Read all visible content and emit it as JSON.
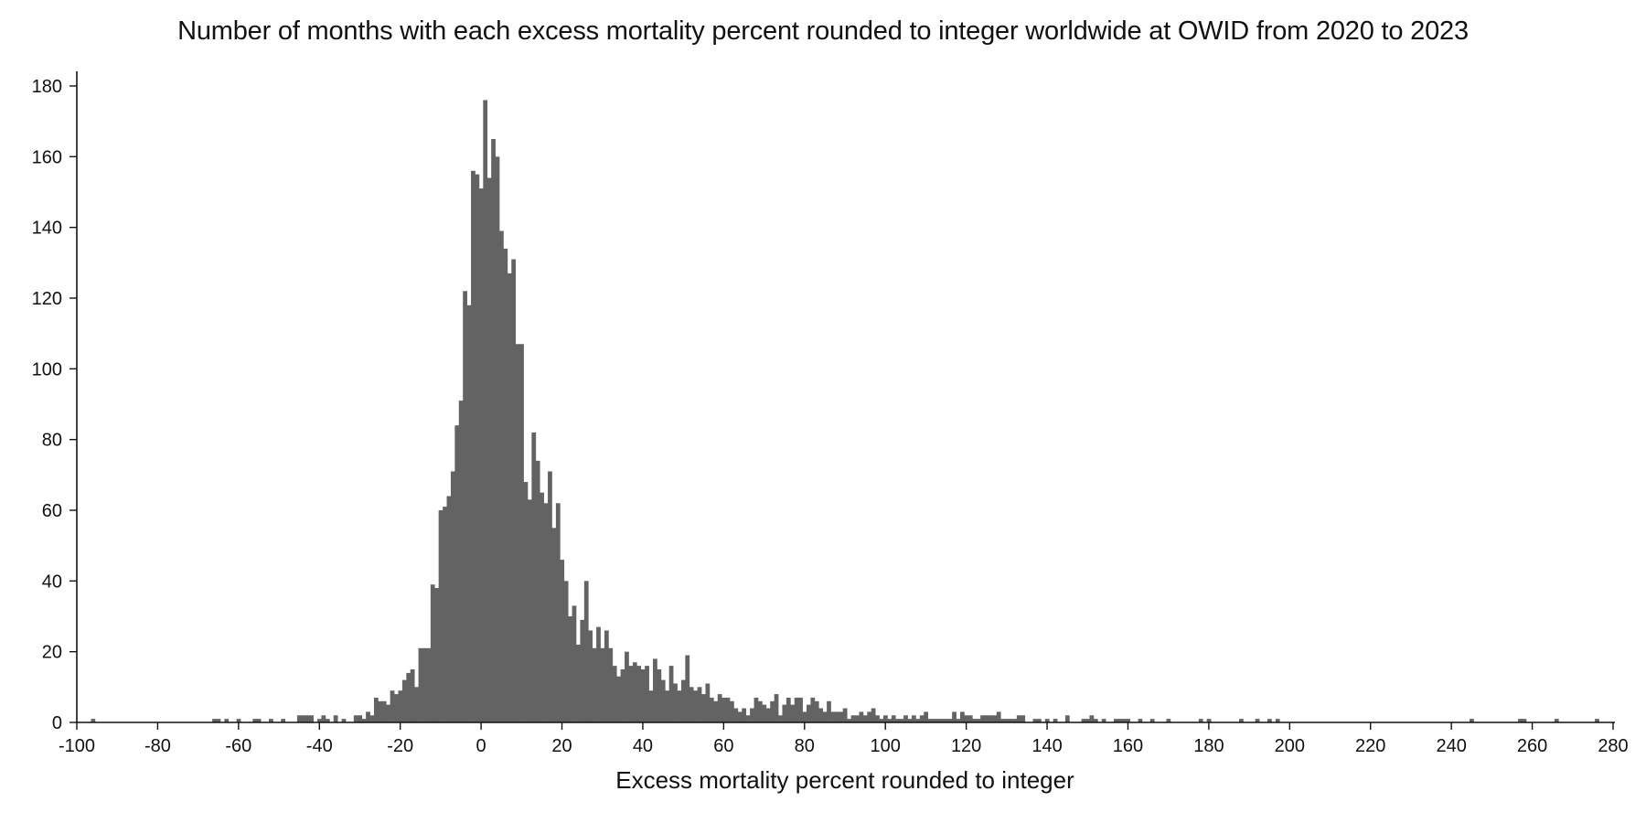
{
  "chart_data": {
    "type": "bar",
    "title": "Number of months with each excess mortality percent rounded to integer worldwide at OWID from 2020 to 2023",
    "xlabel": "Excess mortality percent rounded to integer",
    "ylabel": "",
    "xlim": [
      -100,
      280
    ],
    "ylim": [
      0,
      180
    ],
    "x_ticks": [
      -100,
      -80,
      -60,
      -40,
      -20,
      0,
      20,
      40,
      60,
      80,
      100,
      120,
      140,
      160,
      180,
      200,
      220,
      240,
      260,
      280
    ],
    "y_ticks": [
      0,
      20,
      40,
      60,
      80,
      100,
      120,
      140,
      160,
      180
    ],
    "grid": false,
    "legend": "none",
    "bar_color": "#636363",
    "series": [
      {
        "points": [
          [
            -96,
            1
          ],
          [
            -66,
            1
          ],
          [
            -65,
            1
          ],
          [
            -63,
            1
          ],
          [
            -60,
            1
          ],
          [
            -56,
            1
          ],
          [
            -55,
            1
          ],
          [
            -52,
            1
          ],
          [
            -49,
            1
          ],
          [
            -45,
            2
          ],
          [
            -44,
            2
          ],
          [
            -43,
            2
          ],
          [
            -42,
            2
          ],
          [
            -40,
            1
          ],
          [
            -39,
            2
          ],
          [
            -38,
            1
          ],
          [
            -36,
            2
          ],
          [
            -34,
            1
          ],
          [
            -31,
            2
          ],
          [
            -30,
            2
          ],
          [
            -29,
            1
          ],
          [
            -28,
            3
          ],
          [
            -27,
            2
          ],
          [
            -26,
            7
          ],
          [
            -25,
            6
          ],
          [
            -24,
            6
          ],
          [
            -23,
            5
          ],
          [
            -22,
            9
          ],
          [
            -21,
            8
          ],
          [
            -20,
            9
          ],
          [
            -19,
            12
          ],
          [
            -18,
            14
          ],
          [
            -17,
            15
          ],
          [
            -16,
            10
          ],
          [
            -15,
            21
          ],
          [
            -14,
            21
          ],
          [
            -13,
            21
          ],
          [
            -12,
            39
          ],
          [
            -11,
            38
          ],
          [
            -10,
            60
          ],
          [
            -9,
            61
          ],
          [
            -8,
            64
          ],
          [
            -7,
            71
          ],
          [
            -6,
            84
          ],
          [
            -5,
            91
          ],
          [
            -4,
            122
          ],
          [
            -3,
            118
          ],
          [
            -2,
            156
          ],
          [
            -1,
            155
          ],
          [
            0,
            151
          ],
          [
            1,
            176
          ],
          [
            2,
            154
          ],
          [
            3,
            165
          ],
          [
            4,
            160
          ],
          [
            5,
            139
          ],
          [
            6,
            134
          ],
          [
            7,
            127
          ],
          [
            8,
            131
          ],
          [
            9,
            107
          ],
          [
            10,
            107
          ],
          [
            11,
            68
          ],
          [
            12,
            63
          ],
          [
            13,
            82
          ],
          [
            14,
            74
          ],
          [
            15,
            65
          ],
          [
            16,
            62
          ],
          [
            17,
            71
          ],
          [
            18,
            55
          ],
          [
            19,
            62
          ],
          [
            20,
            46
          ],
          [
            21,
            40
          ],
          [
            22,
            30
          ],
          [
            23,
            33
          ],
          [
            24,
            22
          ],
          [
            25,
            29
          ],
          [
            26,
            40
          ],
          [
            27,
            26
          ],
          [
            28,
            21
          ],
          [
            29,
            27
          ],
          [
            30,
            21
          ],
          [
            31,
            26
          ],
          [
            32,
            21
          ],
          [
            33,
            16
          ],
          [
            34,
            13
          ],
          [
            35,
            15
          ],
          [
            36,
            20
          ],
          [
            37,
            16
          ],
          [
            38,
            17
          ],
          [
            39,
            16
          ],
          [
            40,
            15
          ],
          [
            41,
            16
          ],
          [
            42,
            9
          ],
          [
            43,
            18
          ],
          [
            44,
            15
          ],
          [
            45,
            12
          ],
          [
            46,
            9
          ],
          [
            47,
            16
          ],
          [
            48,
            11
          ],
          [
            49,
            9
          ],
          [
            50,
            12
          ],
          [
            51,
            19
          ],
          [
            52,
            10
          ],
          [
            53,
            9
          ],
          [
            54,
            10
          ],
          [
            55,
            8
          ],
          [
            56,
            11
          ],
          [
            57,
            7
          ],
          [
            58,
            6
          ],
          [
            59,
            8
          ],
          [
            60,
            7
          ],
          [
            61,
            7
          ],
          [
            62,
            6
          ],
          [
            63,
            4
          ],
          [
            64,
            3
          ],
          [
            65,
            4
          ],
          [
            66,
            2
          ],
          [
            67,
            4
          ],
          [
            68,
            7
          ],
          [
            69,
            6
          ],
          [
            70,
            5
          ],
          [
            71,
            4
          ],
          [
            72,
            6
          ],
          [
            73,
            8
          ],
          [
            74,
            2
          ],
          [
            75,
            5
          ],
          [
            76,
            7
          ],
          [
            77,
            5
          ],
          [
            78,
            7
          ],
          [
            79,
            7
          ],
          [
            80,
            3
          ],
          [
            81,
            5
          ],
          [
            82,
            7
          ],
          [
            83,
            6
          ],
          [
            84,
            4
          ],
          [
            85,
            3
          ],
          [
            86,
            6
          ],
          [
            87,
            3
          ],
          [
            88,
            3
          ],
          [
            89,
            3
          ],
          [
            90,
            4
          ],
          [
            91,
            1
          ],
          [
            92,
            2
          ],
          [
            93,
            2
          ],
          [
            94,
            3
          ],
          [
            95,
            2
          ],
          [
            96,
            3
          ],
          [
            97,
            4
          ],
          [
            98,
            2
          ],
          [
            99,
            1
          ],
          [
            100,
            2
          ],
          [
            101,
            1
          ],
          [
            102,
            2
          ],
          [
            103,
            1
          ],
          [
            104,
            1
          ],
          [
            105,
            2
          ],
          [
            106,
            1
          ],
          [
            107,
            2
          ],
          [
            108,
            1
          ],
          [
            109,
            2
          ],
          [
            110,
            3
          ],
          [
            111,
            1
          ],
          [
            112,
            1
          ],
          [
            113,
            1
          ],
          [
            114,
            1
          ],
          [
            115,
            1
          ],
          [
            116,
            1
          ],
          [
            117,
            3
          ],
          [
            118,
            1
          ],
          [
            119,
            3
          ],
          [
            120,
            2
          ],
          [
            121,
            2
          ],
          [
            122,
            1
          ],
          [
            123,
            1
          ],
          [
            124,
            2
          ],
          [
            125,
            2
          ],
          [
            126,
            2
          ],
          [
            127,
            2
          ],
          [
            128,
            3
          ],
          [
            129,
            1
          ],
          [
            130,
            1
          ],
          [
            131,
            1
          ],
          [
            132,
            1
          ],
          [
            133,
            2
          ],
          [
            134,
            2
          ],
          [
            137,
            1
          ],
          [
            138,
            1
          ],
          [
            140,
            1
          ],
          [
            142,
            1
          ],
          [
            145,
            2
          ],
          [
            149,
            1
          ],
          [
            150,
            1
          ],
          [
            151,
            2
          ],
          [
            152,
            1
          ],
          [
            154,
            1
          ],
          [
            157,
            1
          ],
          [
            158,
            1
          ],
          [
            159,
            1
          ],
          [
            160,
            1
          ],
          [
            163,
            1
          ],
          [
            166,
            1
          ],
          [
            170,
            1
          ],
          [
            178,
            1
          ],
          [
            180,
            1
          ],
          [
            188,
            1
          ],
          [
            192,
            1
          ],
          [
            195,
            1
          ],
          [
            197,
            1
          ],
          [
            245,
            1
          ],
          [
            257,
            1
          ],
          [
            258,
            1
          ],
          [
            266,
            1
          ],
          [
            276,
            1
          ]
        ]
      }
    ]
  }
}
